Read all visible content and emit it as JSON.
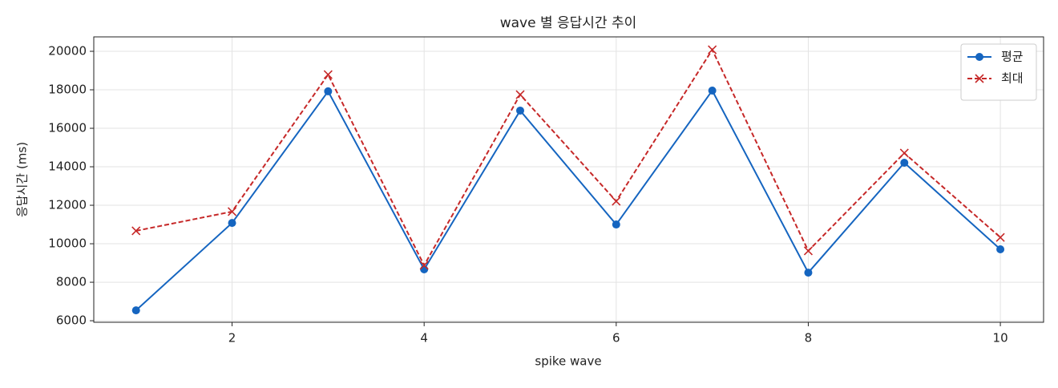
{
  "chart_data": {
    "type": "line",
    "title": "wave 별 응답시간 추이",
    "x_label": "spike wave",
    "y_label": "응답시간 (ms)",
    "x": [
      1,
      2,
      3,
      4,
      5,
      6,
      7,
      8,
      9,
      10
    ],
    "series": [
      {
        "name": "평균",
        "color": "#1565c0",
        "marker": "circle",
        "dashed": false,
        "values": [
          6540,
          11080,
          17920,
          8670,
          16920,
          11000,
          17960,
          8500,
          14210,
          9710
        ]
      },
      {
        "name": "최대",
        "color": "#c62828",
        "marker": "x",
        "dashed": true,
        "values": [
          10670,
          11670,
          18790,
          8880,
          17750,
          12210,
          20080,
          9630,
          14710,
          10330
        ]
      }
    ],
    "xlim": [
      0.56,
      10.45
    ],
    "xticks": [
      2,
      4,
      6,
      8,
      10
    ],
    "ylim": [
      5920,
      20750
    ],
    "yticks": [
      6000,
      8000,
      10000,
      12000,
      14000,
      16000,
      18000,
      20000
    ],
    "grid": true,
    "legend": "upper right"
  }
}
